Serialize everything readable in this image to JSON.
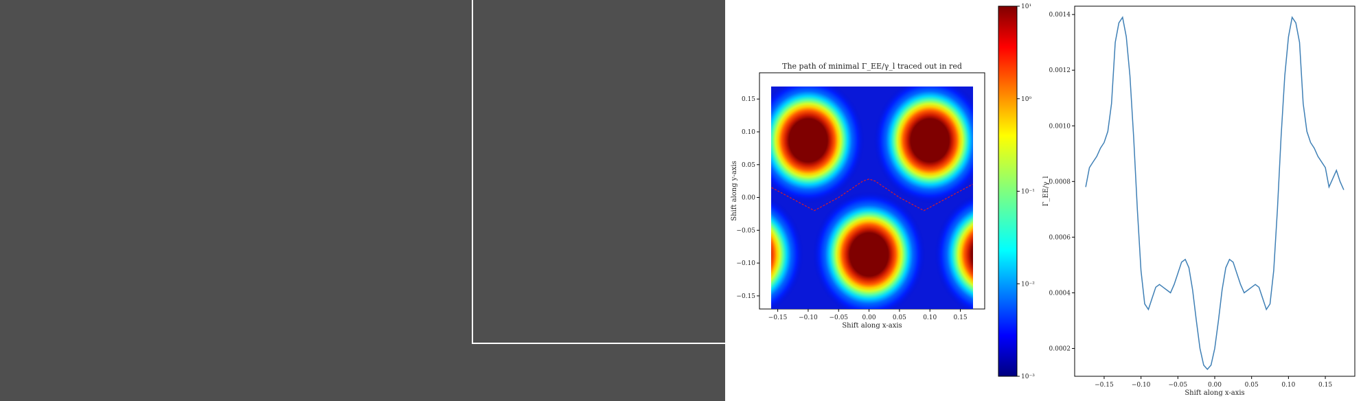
{
  "chart_data": [
    {
      "type": "heatmap",
      "title": "The path of minimal Γ_EE/γ_l traced out in red",
      "xlabel": "Shift along x-axis",
      "ylabel": "Shift along y-axis",
      "xlim": [
        -0.18,
        0.19
      ],
      "ylim": [
        -0.17,
        0.19
      ],
      "xticks": [
        "−0.15",
        "−0.10",
        "−0.05",
        "0.00",
        "0.05",
        "0.10",
        "0.15"
      ],
      "xtick_values": [
        -0.15,
        -0.1,
        -0.05,
        0.0,
        0.05,
        0.1,
        0.15
      ],
      "yticks": [
        "0.15",
        "0.10",
        "0.05",
        "0.00",
        "−0.05",
        "−0.10",
        "−0.15"
      ],
      "ytick_values": [
        0.15,
        0.1,
        0.05,
        0.0,
        -0.05,
        -0.1,
        -0.15
      ],
      "colorbar": {
        "label": "Γ_EE/γ_l",
        "scale": "log",
        "range": [
          0.001,
          10
        ],
        "ticks": [
          "10¹",
          "10⁰",
          "10⁻¹",
          "10⁻²",
          "10⁻³"
        ],
        "tick_values": [
          10,
          1,
          0.1,
          0.01,
          0.001
        ]
      },
      "blobs": [
        {
          "x": -0.1,
          "y": 0.087
        },
        {
          "x": 0.1,
          "y": 0.087
        },
        {
          "x": 0.0,
          "y": -0.087
        },
        {
          "x": -0.2,
          "y": -0.087
        },
        {
          "x": 0.2,
          "y": -0.087
        }
      ],
      "min_path": {
        "color": "#d81b2b",
        "x": [
          -0.17,
          -0.13,
          -0.09,
          -0.05,
          -0.01,
          0.0,
          0.01,
          0.05,
          0.09,
          0.13,
          0.17
        ],
        "y": [
          0.02,
          0.0,
          -0.02,
          0.0,
          0.025,
          0.028,
          0.025,
          0.0,
          -0.02,
          0.0,
          0.02
        ]
      }
    },
    {
      "type": "line",
      "xlabel": "Shift along x-axis",
      "ylabel": "Γ_EE/γ_l",
      "xlim": [
        -0.19,
        0.19
      ],
      "ylim": [
        0.0001,
        0.00143
      ],
      "xticks": [
        "−0.15",
        "−0.10",
        "−0.05",
        "0.00",
        "0.05",
        "0.10",
        "0.15"
      ],
      "xtick_values": [
        -0.15,
        -0.1,
        -0.05,
        0.0,
        0.05,
        0.1,
        0.15
      ],
      "yticks": [
        "0.0014",
        "0.0012",
        "0.0010",
        "0.0008",
        "0.0006",
        "0.0004",
        "0.0002"
      ],
      "ytick_values": [
        0.0014,
        0.0012,
        0.001,
        0.0008,
        0.0006,
        0.0004,
        0.0002
      ],
      "line_color": "#3e7fb5",
      "x": [
        -0.175,
        -0.17,
        -0.165,
        -0.16,
        -0.155,
        -0.15,
        -0.145,
        -0.14,
        -0.135,
        -0.13,
        -0.125,
        -0.12,
        -0.115,
        -0.11,
        -0.105,
        -0.1,
        -0.095,
        -0.09,
        -0.085,
        -0.08,
        -0.075,
        -0.07,
        -0.065,
        -0.06,
        -0.055,
        -0.05,
        -0.045,
        -0.04,
        -0.035,
        -0.03,
        -0.025,
        -0.02,
        -0.015,
        -0.01,
        -0.005,
        0.0,
        0.005,
        0.01,
        0.015,
        0.02,
        0.025,
        0.03,
        0.035,
        0.04,
        0.045,
        0.05,
        0.055,
        0.06,
        0.065,
        0.07,
        0.075,
        0.08,
        0.085,
        0.09,
        0.095,
        0.1,
        0.105,
        0.11,
        0.115,
        0.12,
        0.125,
        0.13,
        0.135,
        0.14,
        0.145,
        0.15,
        0.155,
        0.16,
        0.165,
        0.17,
        0.175
      ],
      "y": [
        0.00078,
        0.00085,
        0.00087,
        0.00089,
        0.00092,
        0.00094,
        0.00098,
        0.00108,
        0.0013,
        0.00137,
        0.00139,
        0.00132,
        0.00118,
        0.00096,
        0.0007,
        0.00048,
        0.00036,
        0.00034,
        0.00038,
        0.00042,
        0.00043,
        0.00042,
        0.00041,
        0.0004,
        0.00043,
        0.00047,
        0.00051,
        0.00052,
        0.00049,
        0.00041,
        0.0003,
        0.0002,
        0.00014,
        0.000125,
        0.00014,
        0.0002,
        0.0003,
        0.00041,
        0.00049,
        0.00052,
        0.00051,
        0.00047,
        0.00043,
        0.0004,
        0.00041,
        0.00042,
        0.00043,
        0.00042,
        0.00038,
        0.00034,
        0.00036,
        0.00048,
        0.0007,
        0.00096,
        0.00118,
        0.00132,
        0.00139,
        0.00137,
        0.0013,
        0.00108,
        0.00098,
        0.00094,
        0.00092,
        0.00089,
        0.00087,
        0.00085,
        0.00078,
        0.00081,
        0.00084,
        0.0008,
        0.00077
      ]
    }
  ]
}
